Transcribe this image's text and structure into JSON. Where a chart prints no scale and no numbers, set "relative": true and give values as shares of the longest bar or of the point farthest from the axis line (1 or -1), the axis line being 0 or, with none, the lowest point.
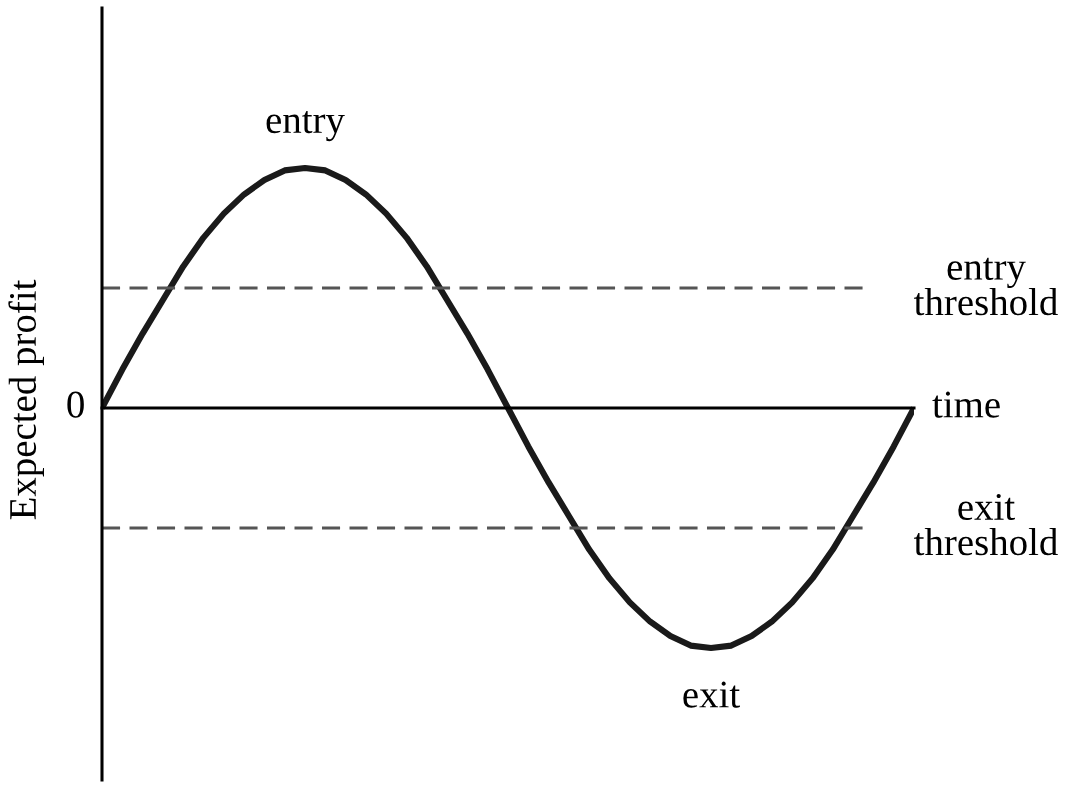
{
  "chart_data": {
    "type": "line",
    "relative": true,
    "xlabel": "time",
    "ylabel": "Expected profit",
    "categories": [
      null,
      null,
      null,
      null,
      null,
      null,
      null,
      null,
      null,
      null,
      null,
      null,
      null,
      null,
      null,
      null,
      null,
      null,
      null,
      null,
      null,
      null,
      null,
      null,
      null,
      null,
      null,
      null,
      null,
      null,
      null,
      null,
      null,
      null,
      null,
      null,
      null,
      null,
      null,
      null,
      null
    ],
    "series": [
      {
        "color": "#1a1a1a",
        "values": [
          0,
          0.16,
          0.31,
          0.45,
          0.59,
          0.71,
          0.81,
          0.89,
          0.95,
          0.99,
          1,
          0.99,
          0.95,
          0.89,
          0.81,
          0.71,
          0.59,
          0.45,
          0.31,
          0.16,
          0,
          -0.16,
          -0.31,
          -0.45,
          -0.59,
          -0.71,
          -0.81,
          -0.89,
          -0.95,
          -0.99,
          -1,
          -0.99,
          -0.95,
          -0.89,
          -0.81,
          -0.71,
          -0.59,
          -0.45,
          -0.31,
          -0.16,
          0
        ]
      }
    ],
    "ref_lines": [
      {
        "axis": "y",
        "value": 0.5,
        "label": "entry\nthreshold",
        "color": "#555555",
        "line_style": "dashed"
      },
      {
        "axis": "y",
        "value": -0.5,
        "label": "exit\nthreshold",
        "color": "#555555",
        "line_style": "dashed"
      }
    ],
    "annotations": [
      "0",
      {
        "text": "entry",
        "y": 1
      },
      {
        "text": "exit",
        "y": -1
      }
    ],
    "marker": "none",
    "line_style": "solid"
  }
}
